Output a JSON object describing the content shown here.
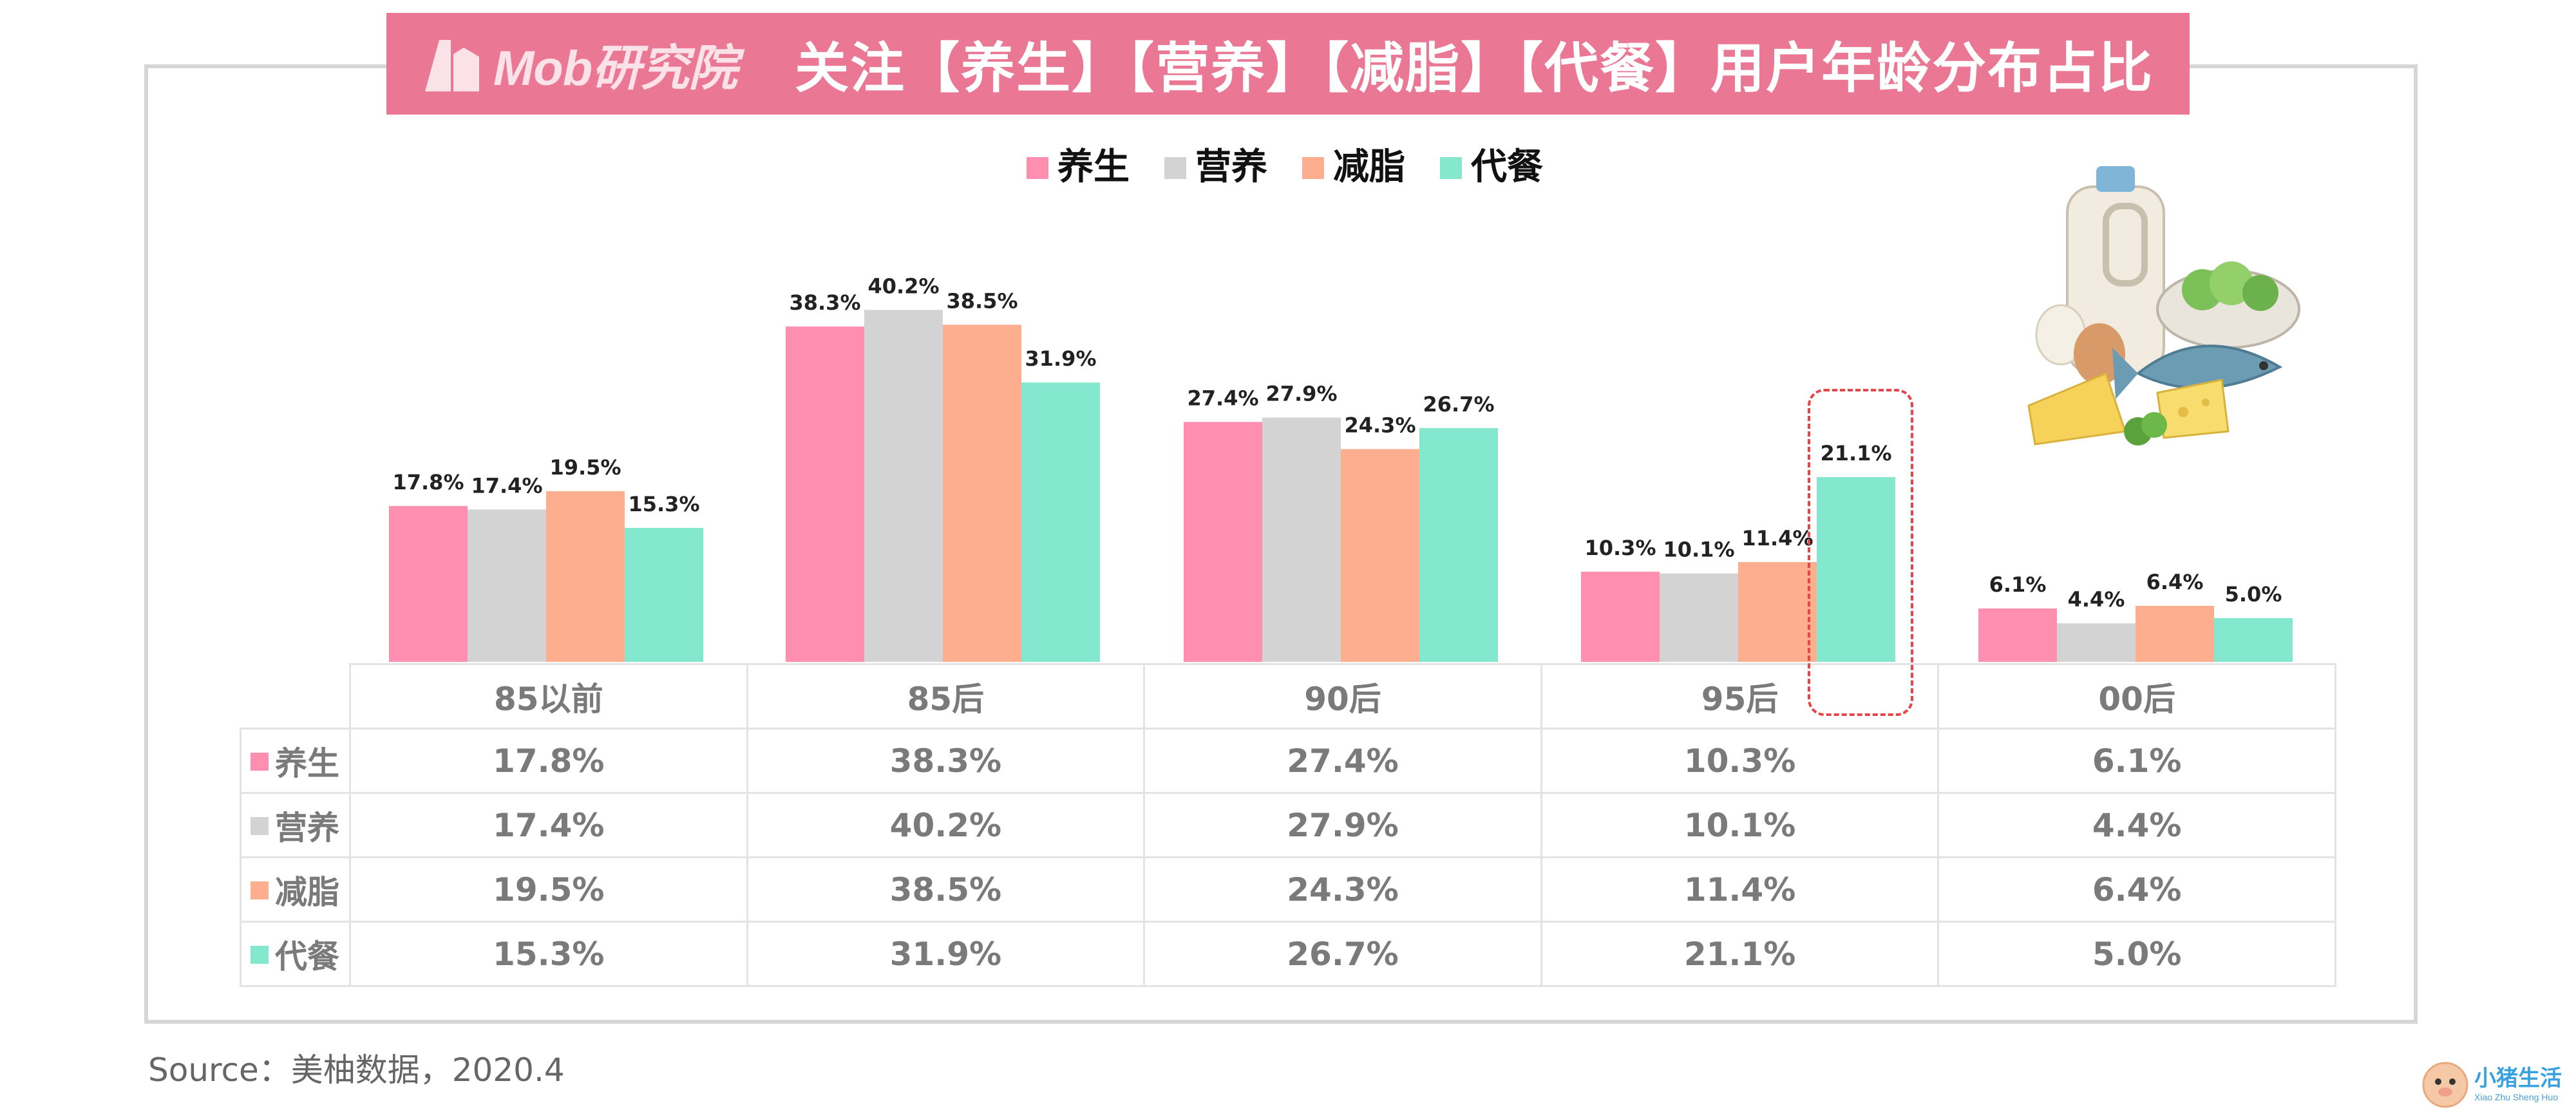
{
  "title": {
    "logo_text": "Mob研究院",
    "text": "关注【养生】【营养】【减脂】【代餐】用户年龄分布占比"
  },
  "colors": {
    "title_bar": "#ea7895",
    "series": [
      "#ff8fb0",
      "#d3d3d3",
      "#fcae8e",
      "#83e8cd"
    ]
  },
  "chart_data": {
    "type": "bar",
    "categories": [
      "85以前",
      "85后",
      "90后",
      "95后",
      "00后"
    ],
    "series": [
      {
        "name": "养生",
        "values": [
          17.8,
          38.3,
          27.4,
          10.3,
          6.1
        ]
      },
      {
        "name": "营养",
        "values": [
          17.4,
          40.2,
          27.9,
          10.1,
          4.4
        ]
      },
      {
        "name": "减脂",
        "values": [
          19.5,
          38.5,
          24.3,
          11.4,
          6.4
        ]
      },
      {
        "name": "代餐",
        "values": [
          15.3,
          31.9,
          26.7,
          21.1,
          5.0
        ]
      }
    ],
    "unit": "%",
    "ylim": [
      0,
      42
    ],
    "legend_position": "top-center",
    "grid": false,
    "highlight": {
      "category": "95后",
      "series": "代餐"
    }
  },
  "table": {
    "header": [
      "85以前",
      "85后",
      "90后",
      "95后",
      "00后"
    ],
    "rows": [
      {
        "label": "养生",
        "cells": [
          "17.8%",
          "38.3%",
          "27.4%",
          "10.3%",
          "6.1%"
        ]
      },
      {
        "label": "营养",
        "cells": [
          "17.4%",
          "40.2%",
          "27.9%",
          "10.1%",
          "4.4%"
        ]
      },
      {
        "label": "减脂",
        "cells": [
          "19.5%",
          "38.5%",
          "24.3%",
          "11.4%",
          "6.4%"
        ]
      },
      {
        "label": "代餐",
        "cells": [
          "15.3%",
          "31.9%",
          "26.7%",
          "21.1%",
          "5.0%"
        ]
      }
    ]
  },
  "source": "Source：美柚数据，2020.4",
  "brand": {
    "name": "小猪生活",
    "sub": "Xiao Zhu Sheng Huo",
    "icon": "piglet-avatar-icon"
  },
  "illustration_icon": "healthy-food-icon"
}
